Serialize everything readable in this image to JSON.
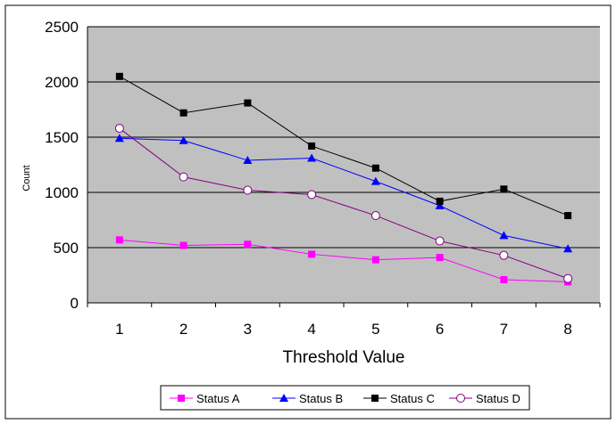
{
  "chart_data": {
    "type": "line",
    "title": "",
    "xlabel": "Threshold Value",
    "ylabel": "Count",
    "x": [
      1,
      2,
      3,
      4,
      5,
      6,
      7,
      8
    ],
    "ylim": [
      0,
      2500
    ],
    "yticks": [
      0,
      500,
      1000,
      1500,
      2000,
      2500
    ],
    "grid": true,
    "legend_position": "bottom",
    "series": [
      {
        "name": "Status A",
        "color": "#ff00ff",
        "marker": "square",
        "values": [
          570,
          520,
          530,
          440,
          390,
          410,
          210,
          190
        ]
      },
      {
        "name": "Status B",
        "color": "#0000ff",
        "marker": "triangle",
        "values": [
          1490,
          1470,
          1290,
          1310,
          1100,
          880,
          610,
          490
        ]
      },
      {
        "name": "Status C",
        "color": "#000000",
        "marker": "square",
        "values": [
          2050,
          1720,
          1810,
          1420,
          1220,
          920,
          1030,
          790
        ]
      },
      {
        "name": "Status D",
        "color": "#800080",
        "marker": "circle",
        "values": [
          1580,
          1140,
          1020,
          980,
          790,
          560,
          430,
          220
        ]
      }
    ]
  }
}
